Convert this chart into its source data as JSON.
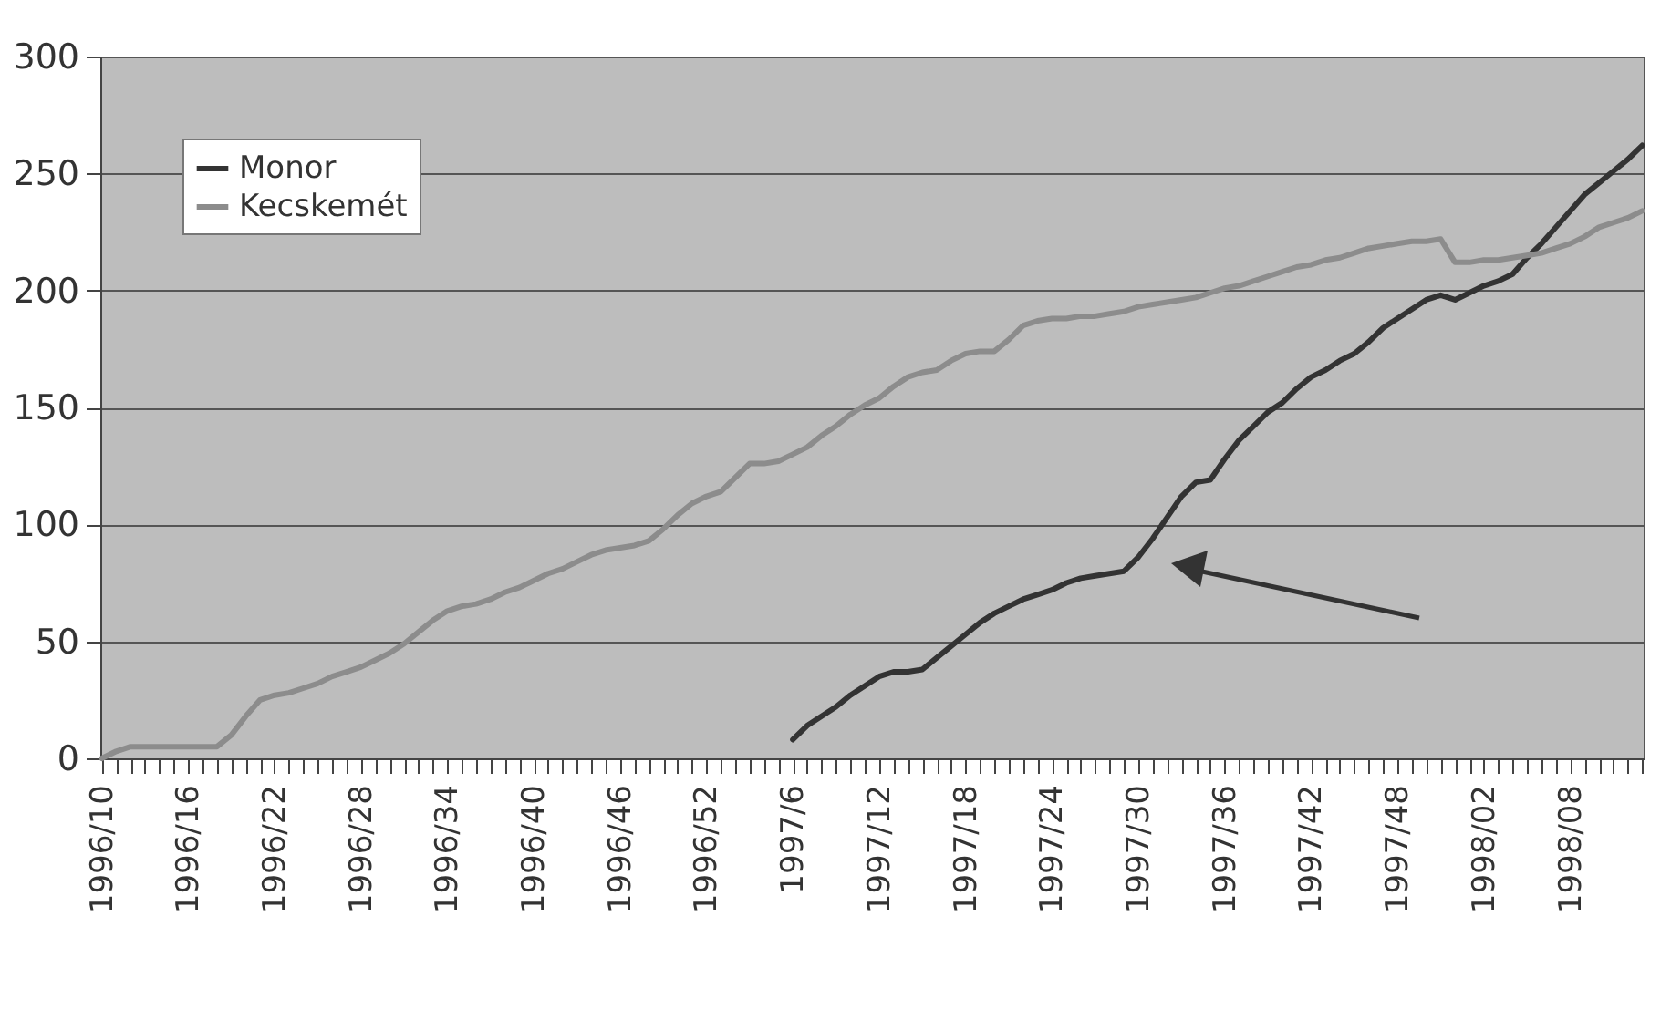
{
  "chart_data": {
    "type": "line",
    "categories": [
      "1996/10",
      null,
      null,
      null,
      null,
      null,
      "1996/16",
      null,
      null,
      null,
      null,
      null,
      "1996/22",
      null,
      null,
      null,
      null,
      null,
      "1996/28",
      null,
      null,
      null,
      null,
      null,
      "1996/34",
      null,
      null,
      null,
      null,
      null,
      "1996/40",
      null,
      null,
      null,
      null,
      null,
      "1996/46",
      null,
      null,
      null,
      null,
      null,
      "1996/52",
      null,
      null,
      null,
      null,
      null,
      "1997/6",
      null,
      null,
      null,
      null,
      null,
      "1997/12",
      null,
      null,
      null,
      null,
      null,
      "1997/18",
      null,
      null,
      null,
      null,
      null,
      "1997/24",
      null,
      null,
      null,
      null,
      null,
      "1997/30",
      null,
      null,
      null,
      null,
      null,
      "1997/36",
      null,
      null,
      null,
      null,
      null,
      "1997/42",
      null,
      null,
      null,
      null,
      null,
      "1997/48",
      null,
      null,
      null,
      null,
      null,
      "1998/02",
      null,
      null,
      null,
      null,
      null,
      "1998/08",
      null,
      null,
      null,
      null,
      null
    ],
    "series": [
      {
        "name": "Monor",
        "color": "#333333",
        "values": [
          null,
          null,
          null,
          null,
          null,
          null,
          null,
          null,
          null,
          null,
          null,
          null,
          null,
          null,
          null,
          null,
          null,
          null,
          null,
          null,
          null,
          null,
          null,
          null,
          null,
          null,
          null,
          null,
          null,
          null,
          null,
          null,
          null,
          null,
          null,
          null,
          null,
          null,
          null,
          null,
          null,
          null,
          null,
          null,
          null,
          null,
          null,
          null,
          8,
          14,
          18,
          22,
          27,
          31,
          35,
          37,
          37,
          38,
          43,
          48,
          53,
          58,
          62,
          65,
          68,
          70,
          72,
          75,
          77,
          78,
          79,
          80,
          86,
          94,
          103,
          112,
          118,
          119,
          128,
          136,
          142,
          148,
          152,
          158,
          163,
          166,
          170,
          173,
          178,
          184,
          188,
          192,
          196,
          198,
          196,
          199,
          202,
          204,
          207,
          214,
          220,
          227,
          234,
          241,
          246,
          251,
          256,
          262
        ]
      },
      {
        "name": "Kecskemét",
        "color": "#8c8c8c",
        "values": [
          0,
          3,
          5,
          5,
          5,
          5,
          5,
          5,
          5,
          10,
          18,
          25,
          27,
          28,
          30,
          32,
          35,
          37,
          39,
          42,
          45,
          49,
          54,
          59,
          63,
          65,
          66,
          68,
          71,
          73,
          76,
          79,
          81,
          84,
          87,
          89,
          90,
          91,
          93,
          98,
          104,
          109,
          112,
          114,
          120,
          126,
          126,
          127,
          130,
          133,
          138,
          142,
          147,
          151,
          154,
          159,
          163,
          165,
          166,
          170,
          173,
          174,
          174,
          179,
          185,
          187,
          188,
          188,
          189,
          189,
          190,
          191,
          193,
          194,
          195,
          196,
          197,
          199,
          201,
          202,
          204,
          206,
          208,
          210,
          211,
          213,
          214,
          216,
          218,
          219,
          220,
          221,
          221,
          222,
          212,
          212,
          213,
          213,
          214,
          215,
          216,
          218,
          220,
          223,
          227,
          229,
          231,
          234
        ]
      }
    ],
    "ylim": [
      0,
      300
    ],
    "yticks": [
      0,
      50,
      100,
      150,
      200,
      250,
      300
    ],
    "grid": "y",
    "legend": "top left"
  }
}
